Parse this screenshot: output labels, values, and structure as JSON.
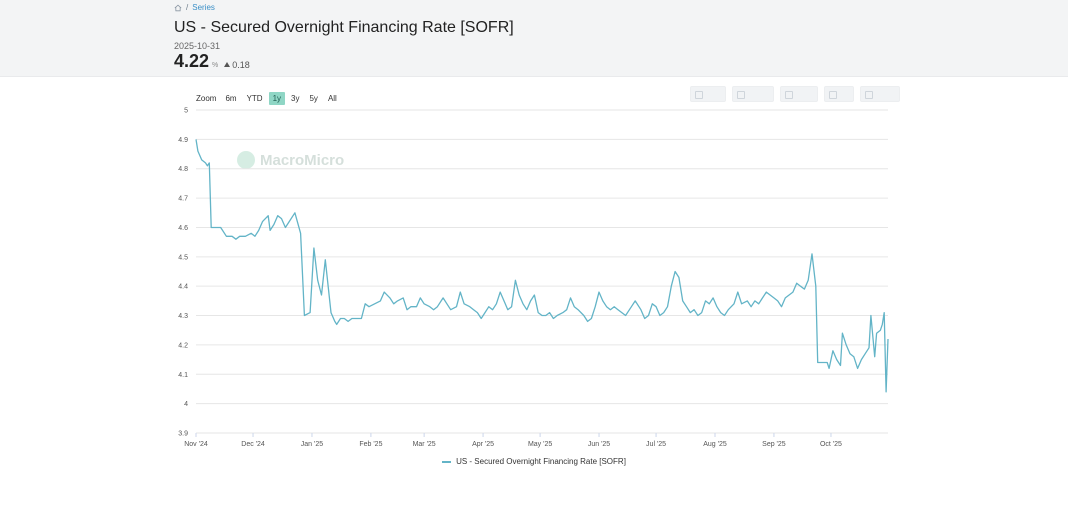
{
  "breadcrumb": {
    "home_icon": "home-icon",
    "separator": "/",
    "link": "Series"
  },
  "title": "US - Secured Overnight Financing Rate [SOFR]",
  "latest": {
    "date": "2025-10-31",
    "value": "4.22",
    "unit": "%",
    "change": "0.18",
    "change_direction": "up"
  },
  "range_selector": {
    "label": "Zoom",
    "options": [
      "6m",
      "YTD",
      "1y",
      "3y",
      "5y",
      "All"
    ],
    "selected": "1y"
  },
  "watermark": "MacroMicro",
  "colors": {
    "line": "#63b4c7",
    "active_range": "#8fd6c5",
    "header_bg": "#f3f4f5"
  },
  "chart_data": {
    "type": "line",
    "title": "US - Secured Overnight Financing Rate [SOFR]",
    "xlabel": "",
    "ylabel": "",
    "ylim": [
      3.9,
      5
    ],
    "yticks": [
      "5",
      "4.9",
      "4.8",
      "4.7",
      "4.6",
      "4.5",
      "4.4",
      "4.3",
      "4.2",
      "4.1",
      "4",
      "3.9"
    ],
    "xlim": [
      "2024-11-01",
      "2025-10-31"
    ],
    "xticks": [
      {
        "date": "2024-11-01",
        "label": "Nov '24"
      },
      {
        "date": "2024-12-01",
        "label": "Dec '24"
      },
      {
        "date": "2025-01-01",
        "label": "Jan '25"
      },
      {
        "date": "2025-02-01",
        "label": "Feb '25"
      },
      {
        "date": "2025-03-01",
        "label": "Mar '25"
      },
      {
        "date": "2025-04-01",
        "label": "Apr '25"
      },
      {
        "date": "2025-05-01",
        "label": "May '25"
      },
      {
        "date": "2025-06-01",
        "label": "Jun '25"
      },
      {
        "date": "2025-07-01",
        "label": "Jul '25"
      },
      {
        "date": "2025-08-01",
        "label": "Aug '25"
      },
      {
        "date": "2025-09-01",
        "label": "Sep '25"
      },
      {
        "date": "2025-10-01",
        "label": "Oct '25"
      }
    ],
    "grid": true,
    "legend": "bottom-center",
    "series": [
      {
        "name": "US - Secured Overnight Financing Rate [SOFR]",
        "points": [
          [
            "2024-11-01",
            4.9
          ],
          [
            "2024-11-02",
            4.86
          ],
          [
            "2024-11-04",
            4.83
          ],
          [
            "2024-11-06",
            4.82
          ],
          [
            "2024-11-07",
            4.81
          ],
          [
            "2024-11-08",
            4.82
          ],
          [
            "2024-11-09",
            4.6
          ],
          [
            "2024-11-12",
            4.6
          ],
          [
            "2024-11-14",
            4.6
          ],
          [
            "2024-11-17",
            4.57
          ],
          [
            "2024-11-20",
            4.57
          ],
          [
            "2024-11-22",
            4.56
          ],
          [
            "2024-11-24",
            4.57
          ],
          [
            "2024-11-27",
            4.57
          ],
          [
            "2024-11-30",
            4.58
          ],
          [
            "2024-12-02",
            4.57
          ],
          [
            "2024-12-04",
            4.59
          ],
          [
            "2024-12-06",
            4.62
          ],
          [
            "2024-12-09",
            4.64
          ],
          [
            "2024-12-10",
            4.59
          ],
          [
            "2024-12-12",
            4.61
          ],
          [
            "2024-12-14",
            4.64
          ],
          [
            "2024-12-16",
            4.63
          ],
          [
            "2024-12-18",
            4.6
          ],
          [
            "2024-12-20",
            4.62
          ],
          [
            "2024-12-23",
            4.65
          ],
          [
            "2024-12-26",
            4.58
          ],
          [
            "2024-12-28",
            4.3
          ],
          [
            "2024-12-31",
            4.31
          ],
          [
            "2025-01-02",
            4.53
          ],
          [
            "2025-01-04",
            4.42
          ],
          [
            "2025-01-06",
            4.37
          ],
          [
            "2025-01-08",
            4.49
          ],
          [
            "2025-01-11",
            4.31
          ],
          [
            "2025-01-13",
            4.28
          ],
          [
            "2025-01-14",
            4.27
          ],
          [
            "2025-01-16",
            4.29
          ],
          [
            "2025-01-18",
            4.29
          ],
          [
            "2025-01-20",
            4.28
          ],
          [
            "2025-01-22",
            4.29
          ],
          [
            "2025-01-24",
            4.29
          ],
          [
            "2025-01-27",
            4.29
          ],
          [
            "2025-01-29",
            4.34
          ],
          [
            "2025-01-31",
            4.33
          ],
          [
            "2025-02-03",
            4.34
          ],
          [
            "2025-02-06",
            4.35
          ],
          [
            "2025-02-08",
            4.38
          ],
          [
            "2025-02-11",
            4.36
          ],
          [
            "2025-02-13",
            4.34
          ],
          [
            "2025-02-15",
            4.35
          ],
          [
            "2025-02-18",
            4.36
          ],
          [
            "2025-02-20",
            4.32
          ],
          [
            "2025-02-22",
            4.33
          ],
          [
            "2025-02-25",
            4.33
          ],
          [
            "2025-02-27",
            4.36
          ],
          [
            "2025-03-01",
            4.34
          ],
          [
            "2025-03-04",
            4.33
          ],
          [
            "2025-03-06",
            4.32
          ],
          [
            "2025-03-08",
            4.33
          ],
          [
            "2025-03-11",
            4.36
          ],
          [
            "2025-03-13",
            4.34
          ],
          [
            "2025-03-15",
            4.32
          ],
          [
            "2025-03-18",
            4.33
          ],
          [
            "2025-03-20",
            4.38
          ],
          [
            "2025-03-22",
            4.34
          ],
          [
            "2025-03-25",
            4.33
          ],
          [
            "2025-03-27",
            4.32
          ],
          [
            "2025-03-29",
            4.31
          ],
          [
            "2025-03-31",
            4.29
          ],
          [
            "2025-04-02",
            4.31
          ],
          [
            "2025-04-04",
            4.33
          ],
          [
            "2025-04-06",
            4.32
          ],
          [
            "2025-04-08",
            4.34
          ],
          [
            "2025-04-10",
            4.38
          ],
          [
            "2025-04-12",
            4.35
          ],
          [
            "2025-04-14",
            4.32
          ],
          [
            "2025-04-16",
            4.33
          ],
          [
            "2025-04-18",
            4.42
          ],
          [
            "2025-04-20",
            4.37
          ],
          [
            "2025-04-22",
            4.34
          ],
          [
            "2025-04-24",
            4.32
          ],
          [
            "2025-04-26",
            4.35
          ],
          [
            "2025-04-28",
            4.37
          ],
          [
            "2025-04-30",
            4.31
          ],
          [
            "2025-05-02",
            4.3
          ],
          [
            "2025-05-04",
            4.3
          ],
          [
            "2025-05-06",
            4.31
          ],
          [
            "2025-05-08",
            4.29
          ],
          [
            "2025-05-10",
            4.3
          ],
          [
            "2025-05-13",
            4.31
          ],
          [
            "2025-05-15",
            4.32
          ],
          [
            "2025-05-17",
            4.36
          ],
          [
            "2025-05-19",
            4.33
          ],
          [
            "2025-05-21",
            4.32
          ],
          [
            "2025-05-24",
            4.3
          ],
          [
            "2025-05-26",
            4.28
          ],
          [
            "2025-05-28",
            4.29
          ],
          [
            "2025-05-30",
            4.33
          ],
          [
            "2025-06-01",
            4.38
          ],
          [
            "2025-06-03",
            4.35
          ],
          [
            "2025-06-05",
            4.33
          ],
          [
            "2025-06-07",
            4.32
          ],
          [
            "2025-06-09",
            4.33
          ],
          [
            "2025-06-11",
            4.32
          ],
          [
            "2025-06-13",
            4.31
          ],
          [
            "2025-06-15",
            4.3
          ],
          [
            "2025-06-18",
            4.33
          ],
          [
            "2025-06-20",
            4.35
          ],
          [
            "2025-06-23",
            4.32
          ],
          [
            "2025-06-25",
            4.29
          ],
          [
            "2025-06-27",
            4.3
          ],
          [
            "2025-06-29",
            4.34
          ],
          [
            "2025-07-01",
            4.33
          ],
          [
            "2025-07-03",
            4.3
          ],
          [
            "2025-07-05",
            4.31
          ],
          [
            "2025-07-07",
            4.33
          ],
          [
            "2025-07-09",
            4.4
          ],
          [
            "2025-07-11",
            4.45
          ],
          [
            "2025-07-13",
            4.43
          ],
          [
            "2025-07-15",
            4.35
          ],
          [
            "2025-07-17",
            4.33
          ],
          [
            "2025-07-19",
            4.31
          ],
          [
            "2025-07-21",
            4.32
          ],
          [
            "2025-07-23",
            4.3
          ],
          [
            "2025-07-25",
            4.31
          ],
          [
            "2025-07-27",
            4.35
          ],
          [
            "2025-07-29",
            4.34
          ],
          [
            "2025-07-31",
            4.36
          ],
          [
            "2025-08-02",
            4.33
          ],
          [
            "2025-08-04",
            4.31
          ],
          [
            "2025-08-06",
            4.3
          ],
          [
            "2025-08-08",
            4.32
          ],
          [
            "2025-08-11",
            4.34
          ],
          [
            "2025-08-13",
            4.38
          ],
          [
            "2025-08-15",
            4.34
          ],
          [
            "2025-08-18",
            4.35
          ],
          [
            "2025-08-20",
            4.33
          ],
          [
            "2025-08-22",
            4.35
          ],
          [
            "2025-08-24",
            4.34
          ],
          [
            "2025-08-26",
            4.36
          ],
          [
            "2025-08-28",
            4.38
          ],
          [
            "2025-08-30",
            4.37
          ],
          [
            "2025-09-01",
            4.36
          ],
          [
            "2025-09-03",
            4.35
          ],
          [
            "2025-09-05",
            4.33
          ],
          [
            "2025-09-07",
            4.36
          ],
          [
            "2025-09-09",
            4.37
          ],
          [
            "2025-09-11",
            4.38
          ],
          [
            "2025-09-13",
            4.41
          ],
          [
            "2025-09-15",
            4.4
          ],
          [
            "2025-09-17",
            4.39
          ],
          [
            "2025-09-19",
            4.42
          ],
          [
            "2025-09-21",
            4.51
          ],
          [
            "2025-09-23",
            4.4
          ],
          [
            "2025-09-24",
            4.14
          ],
          [
            "2025-09-27",
            4.14
          ],
          [
            "2025-09-29",
            4.14
          ],
          [
            "2025-09-30",
            4.12
          ],
          [
            "2025-10-02",
            4.18
          ],
          [
            "2025-10-04",
            4.15
          ],
          [
            "2025-10-06",
            4.13
          ],
          [
            "2025-10-07",
            4.24
          ],
          [
            "2025-10-09",
            4.2
          ],
          [
            "2025-10-11",
            4.17
          ],
          [
            "2025-10-13",
            4.16
          ],
          [
            "2025-10-15",
            4.12
          ],
          [
            "2025-10-17",
            4.15
          ],
          [
            "2025-10-19",
            4.17
          ],
          [
            "2025-10-21",
            4.19
          ],
          [
            "2025-10-22",
            4.3
          ],
          [
            "2025-10-24",
            4.16
          ],
          [
            "2025-10-25",
            4.24
          ],
          [
            "2025-10-27",
            4.25
          ],
          [
            "2025-10-28",
            4.27
          ],
          [
            "2025-10-29",
            4.31
          ],
          [
            "2025-10-30",
            4.04
          ],
          [
            "2025-10-31",
            4.22
          ]
        ]
      }
    ]
  }
}
